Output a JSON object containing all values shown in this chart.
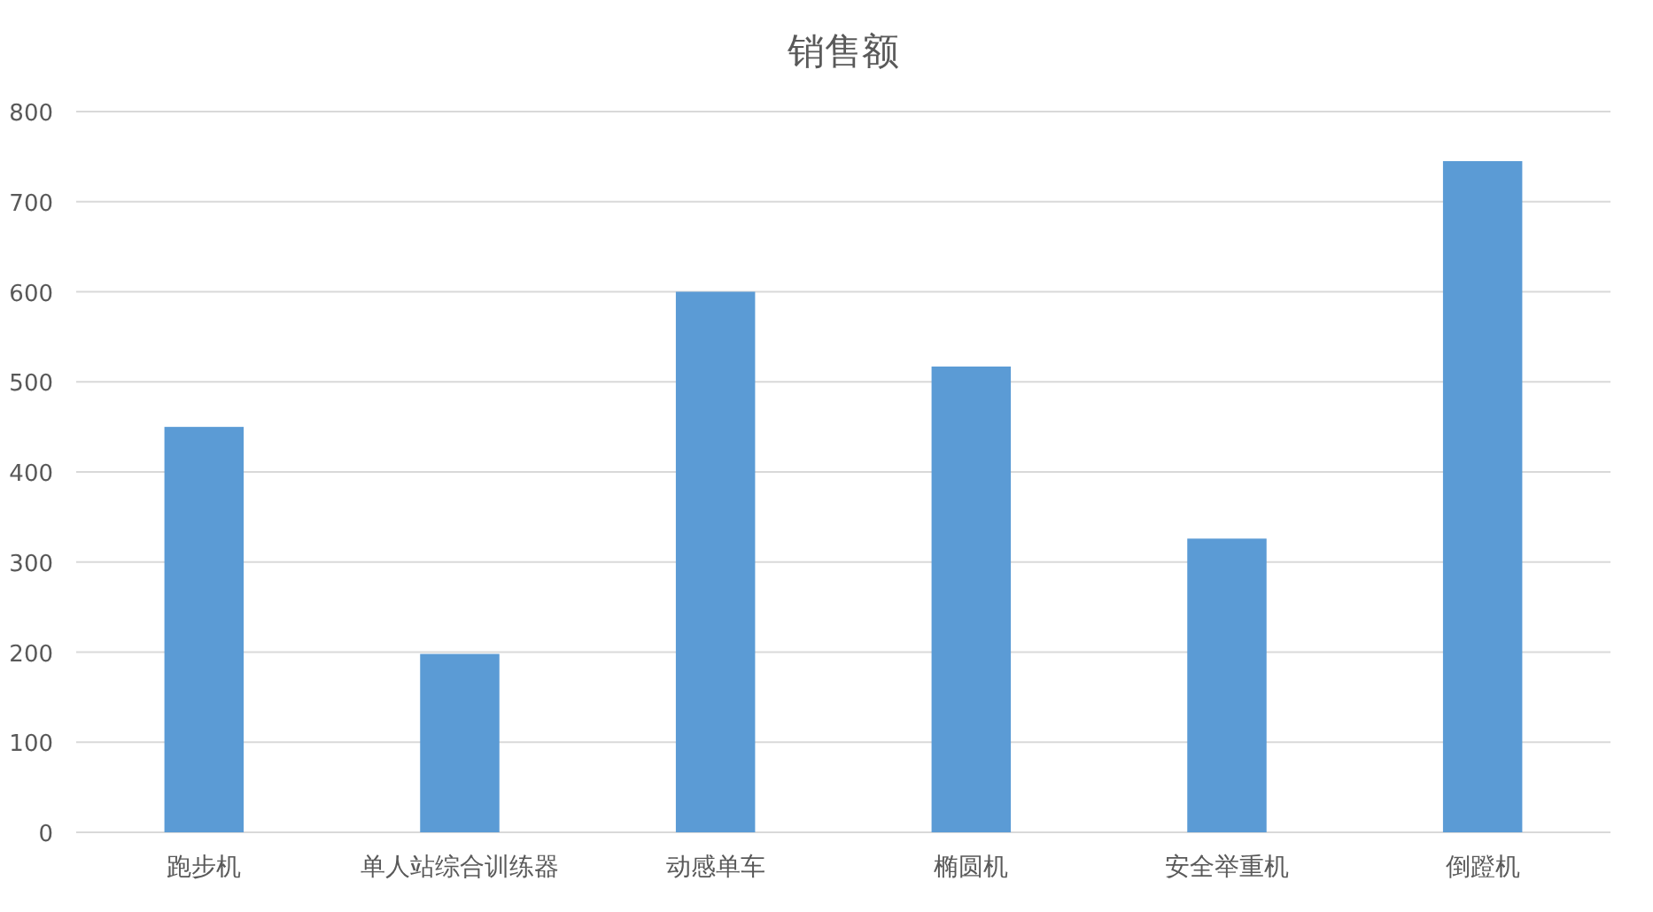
{
  "chart_data": {
    "type": "bar",
    "title": "销售额",
    "categories": [
      "跑步机",
      "单人站综合训练器",
      "动感单车",
      "椭圆机",
      "安全举重机",
      "倒蹬机"
    ],
    "values": [
      450,
      198,
      600,
      517,
      326,
      745
    ],
    "color": "#5b9bd5",
    "ylim": [
      0,
      800
    ],
    "yticks": [
      0,
      100,
      200,
      300,
      400,
      500,
      600,
      700,
      800
    ],
    "grid": "y"
  }
}
